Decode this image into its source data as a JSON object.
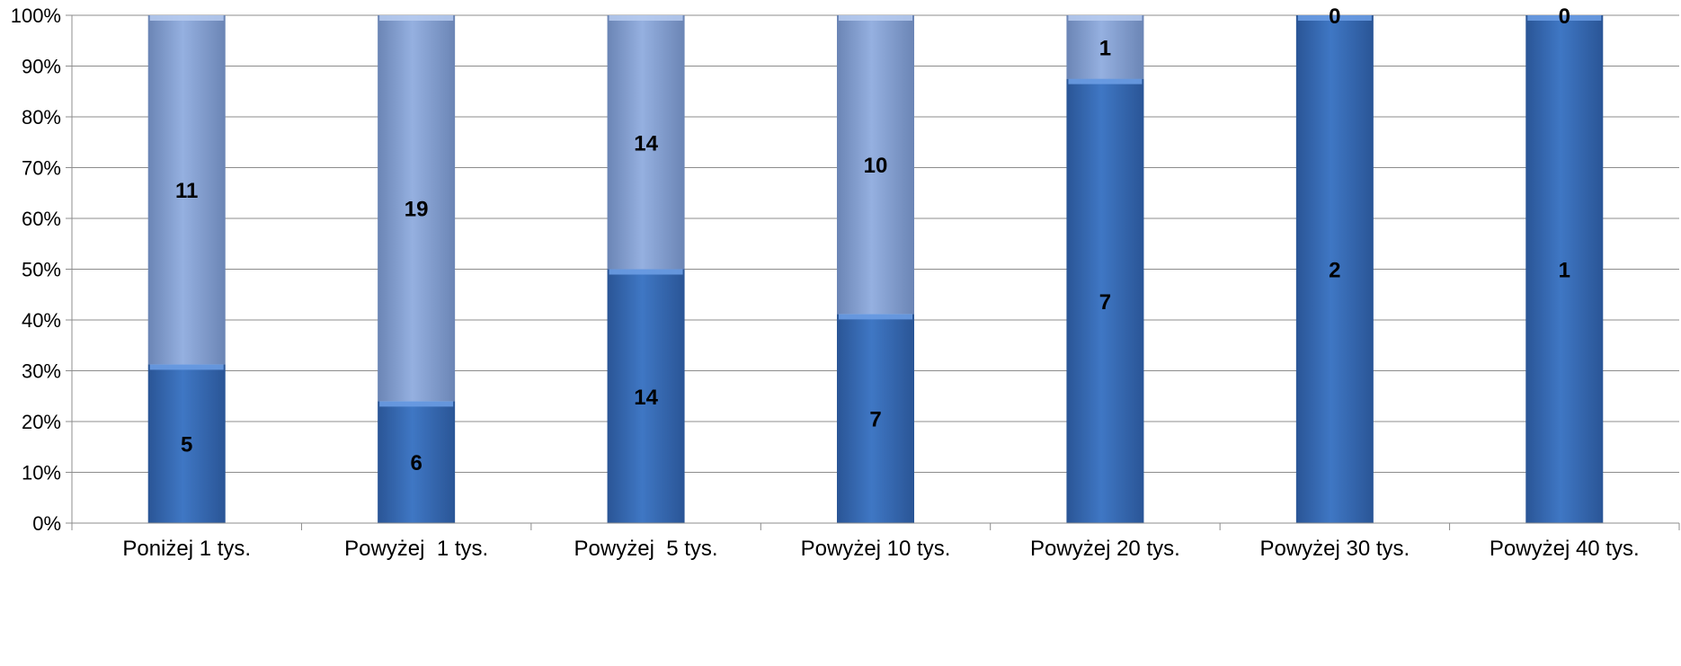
{
  "chart_data": {
    "type": "bar",
    "stacked": true,
    "normalized": true,
    "categories": [
      "Poniżej 1 tys.",
      "Powyżej  1 tys.",
      "Powyżej  5 tys.",
      "Powyżej 10 tys.",
      "Powyżej 20 tys.",
      "Powyżej 30 tys.",
      "Powyżej 40 tys."
    ],
    "series": [
      {
        "values": [
          5,
          6,
          14,
          7,
          7,
          2,
          1
        ],
        "color": "#3a6fbd"
      },
      {
        "values": [
          11,
          19,
          14,
          10,
          1,
          0,
          0
        ],
        "color": "#8aa6d6"
      }
    ],
    "y_ticks": [
      "0%",
      "10%",
      "20%",
      "30%",
      "40%",
      "50%",
      "60%",
      "70%",
      "80%",
      "90%",
      "100%"
    ],
    "ylim": [
      0,
      100
    ],
    "grid": true,
    "legend": "none",
    "title": "",
    "xlabel": "",
    "ylabel": ""
  }
}
